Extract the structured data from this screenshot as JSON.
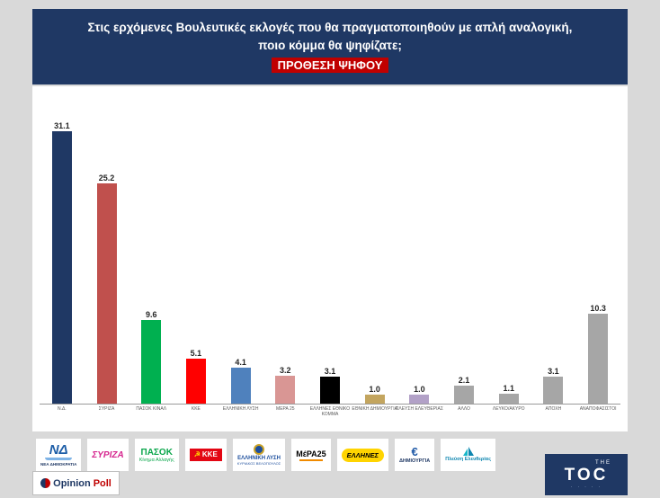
{
  "theme": {
    "page_bg": "#D9D9D9",
    "header_bg": "#1F3864",
    "highlight_bg": "#C00000",
    "panel_bg": "#FFFFFF"
  },
  "header": {
    "question_line1": "Στις ερχόμενες Βουλευτικές εκλογές που θα πραγματοποιηθούν με απλή αναλογική,",
    "question_line2": "ποιο κόμμα θα ψηφίζατε;",
    "highlight_label": "ΠΡΟΘΕΣΗ ΨΗΦΟΥ"
  },
  "chart_data": {
    "type": "bar",
    "title": "ΠΡΟΘΕΣΗ ΨΗΦΟΥ",
    "categories": [
      "Ν.Δ.",
      "ΣΥΡΙΖΑ",
      "ΠΑΣΟΚ ΚΙΝΑΛ",
      "ΚΚΕ",
      "ΕΛΛΗΝΙΚΗ ΛΥΣΗ",
      "ΜΕΡΑ 25",
      "ΕΛΛΗΝΕΣ ΕΘΝΙΚΟ ΚΟΜΜΑ",
      "ΕΘΝΙΚΗ ΔΗΜΙΟΥΡΓΙΑ",
      "ΠΛΕΥΣΗ ΕΛΕΥΘΕΡΙΑΣ",
      "ΑΛΛΟ",
      "ΛΕΥΚΟ/ΑΚΥΡΟ",
      "ΑΠΟΧΗ",
      "ΑΝΑΠΟΦΑΣΙΣΤΟΙ"
    ],
    "values": [
      31.1,
      25.2,
      9.6,
      5.1,
      4.1,
      3.2,
      3.1,
      1.0,
      1.0,
      2.1,
      1.1,
      3.1,
      10.3
    ],
    "bar_colors": [
      "#1F3864",
      "#C0504D",
      "#00B050",
      "#FF0000",
      "#4F81BD",
      "#D99694",
      "#000000",
      "#C3A55F",
      "#B2A1C7",
      "#A6A6A6",
      "#A6A6A6",
      "#A6A6A6",
      "#A6A6A6"
    ],
    "xlabel": "",
    "ylabel": "",
    "ylim": [
      0,
      33
    ],
    "grid": false,
    "legend": false,
    "value_labels": true
  },
  "footer": {
    "logos": [
      {
        "id": "nea-dimokratia",
        "text": "ΝΔ",
        "sub": "ΝΕΑ ΔΗΜΟΚΡΑΤΙΑ"
      },
      {
        "id": "syriza",
        "text": "ΣΥΡΙΖΑ",
        "sub": ""
      },
      {
        "id": "pasok",
        "text": "ΠΑΣΟΚ",
        "sub": "Κίνημα Αλλαγής"
      },
      {
        "id": "kke",
        "text": "ΚΚΕ",
        "sub": ""
      },
      {
        "id": "elliniki-lysi",
        "text": "ΕΛΛΗΝΙΚΗ ΛΥΣΗ",
        "sub": "ΚΥΡΙΑΚΟΣ ΒΕΛΟΠΟΥΛΟΣ"
      },
      {
        "id": "mera25",
        "text": "ΜέΡΑ25",
        "sub": ""
      },
      {
        "id": "ellines",
        "text": "ΕΛΛΗΝΕΣ",
        "sub": ""
      },
      {
        "id": "dimiourgia",
        "text": "€",
        "sub": "ΔΗΜΙΟΥΡΓΙΑ"
      },
      {
        "id": "plefsi-eleftherias",
        "text": "Πλεύση Ελευθερίας",
        "sub": ""
      }
    ],
    "opinion_poll": {
      "part1": "Opinion",
      "part2": "Poll"
    },
    "toc": {
      "the": "THE",
      "main": "TOC",
      "dots": "· · · · ·"
    }
  }
}
